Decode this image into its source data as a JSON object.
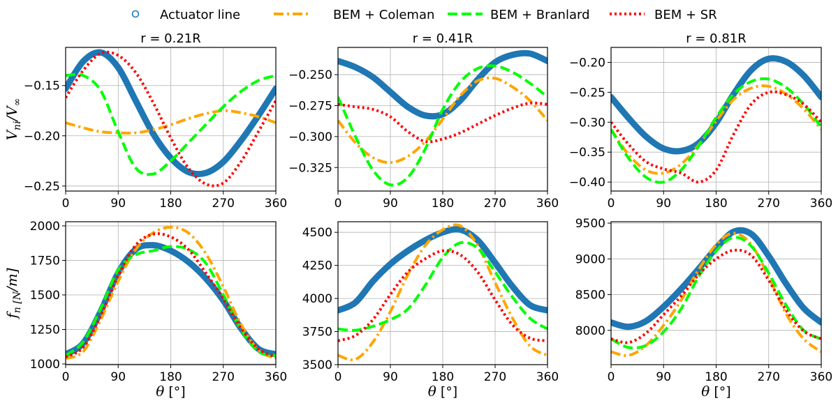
{
  "legend": {
    "entries": [
      {
        "label": "Actuator line",
        "color": "#1f77b4",
        "style": "marker-circle"
      },
      {
        "label": "BEM + Coleman",
        "color": "#ffa500",
        "style": "dashdot"
      },
      {
        "label": "BEM + Branlard",
        "color": "#00ff00",
        "style": "dashed"
      },
      {
        "label": "BEM + SR",
        "color": "#ff0000",
        "style": "dotted"
      }
    ]
  },
  "chart_data": [
    {
      "type": "line",
      "title": "r = 0.21R",
      "xlabel": "",
      "ylabel": "V_ni/V_∞",
      "xlim": [
        0,
        360
      ],
      "ylim": [
        -0.255,
        -0.112
      ],
      "xticks": [
        0,
        90,
        180,
        270,
        360
      ],
      "xtick_labels": [
        "0",
        "90",
        "180",
        "270",
        "360"
      ],
      "yticks": [
        -0.25,
        -0.2,
        -0.15
      ],
      "ytick_labels": [
        "−0.25",
        "−0.20",
        "−0.15"
      ],
      "x": [
        0,
        30,
        60,
        90,
        120,
        150,
        180,
        210,
        240,
        270,
        300,
        330,
        360
      ],
      "series": [
        {
          "name": "Actuator line",
          "values": [
            -0.153,
            -0.126,
            -0.117,
            -0.132,
            -0.165,
            -0.198,
            -0.222,
            -0.236,
            -0.237,
            -0.226,
            -0.205,
            -0.18,
            -0.153
          ]
        },
        {
          "name": "BEM + Coleman",
          "values": [
            -0.187,
            -0.192,
            -0.196,
            -0.197,
            -0.197,
            -0.194,
            -0.189,
            -0.183,
            -0.178,
            -0.175,
            -0.177,
            -0.181,
            -0.187
          ]
        },
        {
          "name": "BEM + Branlard",
          "values": [
            -0.14,
            -0.14,
            -0.155,
            -0.196,
            -0.232,
            -0.238,
            -0.225,
            -0.207,
            -0.189,
            -0.171,
            -0.156,
            -0.145,
            -0.14
          ]
        },
        {
          "name": "BEM + SR",
          "values": [
            -0.162,
            -0.135,
            -0.118,
            -0.12,
            -0.137,
            -0.167,
            -0.202,
            -0.232,
            -0.248,
            -0.247,
            -0.226,
            -0.196,
            -0.165
          ]
        }
      ]
    },
    {
      "type": "line",
      "title": "r = 0.41R",
      "xlabel": "",
      "ylabel": "",
      "xlim": [
        0,
        360
      ],
      "ylim": [
        -0.344,
        -0.228
      ],
      "xticks": [
        0,
        90,
        180,
        270,
        360
      ],
      "xtick_labels": [
        "0",
        "90",
        "180",
        "270",
        "360"
      ],
      "yticks": [
        -0.325,
        -0.3,
        -0.275,
        -0.25
      ],
      "ytick_labels": [
        "−0.325",
        "−0.300",
        "−0.275",
        "−0.250"
      ],
      "x": [
        0,
        30,
        60,
        90,
        120,
        150,
        180,
        210,
        240,
        270,
        300,
        330,
        360
      ],
      "series": [
        {
          "name": "Actuator line",
          "values": [
            -0.239,
            -0.244,
            -0.252,
            -0.264,
            -0.276,
            -0.283,
            -0.282,
            -0.271,
            -0.254,
            -0.24,
            -0.234,
            -0.233,
            -0.239
          ]
        },
        {
          "name": "BEM + Coleman",
          "values": [
            -0.287,
            -0.305,
            -0.317,
            -0.321,
            -0.316,
            -0.304,
            -0.286,
            -0.267,
            -0.255,
            -0.253,
            -0.26,
            -0.271,
            -0.287
          ]
        },
        {
          "name": "BEM + Branlard",
          "values": [
            -0.268,
            -0.3,
            -0.327,
            -0.339,
            -0.333,
            -0.31,
            -0.278,
            -0.256,
            -0.245,
            -0.243,
            -0.248,
            -0.257,
            -0.268
          ]
        },
        {
          "name": "BEM + SR",
          "values": [
            -0.274,
            -0.276,
            -0.278,
            -0.284,
            -0.296,
            -0.304,
            -0.302,
            -0.297,
            -0.29,
            -0.283,
            -0.277,
            -0.273,
            -0.274
          ]
        }
      ]
    },
    {
      "type": "line",
      "title": "r = 0.81R",
      "xlabel": "",
      "ylabel": "",
      "xlim": [
        0,
        360
      ],
      "ylim": [
        -0.415,
        -0.175
      ],
      "xticks": [
        0,
        90,
        180,
        270,
        360
      ],
      "xtick_labels": [
        "0",
        "90",
        "180",
        "270",
        "360"
      ],
      "yticks": [
        -0.4,
        -0.35,
        -0.3,
        -0.25,
        -0.2
      ],
      "ytick_labels": [
        "−0.40",
        "−0.35",
        "−0.30",
        "−0.25",
        "−0.20"
      ],
      "x": [
        0,
        30,
        60,
        90,
        120,
        150,
        180,
        210,
        240,
        270,
        300,
        330,
        360
      ],
      "series": [
        {
          "name": "Actuator line",
          "values": [
            -0.258,
            -0.293,
            -0.324,
            -0.344,
            -0.348,
            -0.335,
            -0.301,
            -0.253,
            -0.213,
            -0.194,
            -0.199,
            -0.222,
            -0.258
          ]
        },
        {
          "name": "BEM + Coleman",
          "values": [
            -0.312,
            -0.354,
            -0.38,
            -0.385,
            -0.37,
            -0.338,
            -0.298,
            -0.262,
            -0.243,
            -0.24,
            -0.253,
            -0.278,
            -0.312
          ]
        },
        {
          "name": "BEM + Branlard",
          "values": [
            -0.312,
            -0.36,
            -0.392,
            -0.4,
            -0.38,
            -0.34,
            -0.292,
            -0.253,
            -0.232,
            -0.228,
            -0.242,
            -0.27,
            -0.308
          ]
        },
        {
          "name": "BEM + SR",
          "values": [
            -0.3,
            -0.337,
            -0.366,
            -0.378,
            -0.385,
            -0.4,
            -0.38,
            -0.32,
            -0.27,
            -0.25,
            -0.254,
            -0.27,
            -0.3
          ]
        }
      ]
    },
    {
      "type": "line",
      "title": "",
      "xlabel": "θ [°]",
      "ylabel": "f_n [N/m]",
      "xlim": [
        0,
        360
      ],
      "ylim": [
        995,
        2030
      ],
      "xticks": [
        0,
        90,
        180,
        270,
        360
      ],
      "xtick_labels": [
        "0",
        "90",
        "180",
        "270",
        "360"
      ],
      "yticks": [
        1000,
        1250,
        1500,
        1750,
        2000
      ],
      "ytick_labels": [
        "1000",
        "1250",
        "1500",
        "1750",
        "2000"
      ],
      "x": [
        0,
        30,
        60,
        90,
        120,
        150,
        180,
        210,
        240,
        270,
        300,
        330,
        360
      ],
      "series": [
        {
          "name": "Actuator line",
          "values": [
            1070,
            1150,
            1380,
            1660,
            1830,
            1860,
            1820,
            1740,
            1620,
            1460,
            1260,
            1110,
            1070
          ]
        },
        {
          "name": "BEM + Coleman",
          "values": [
            1040,
            1090,
            1320,
            1600,
            1830,
            1950,
            1990,
            1950,
            1800,
            1560,
            1290,
            1100,
            1040
          ]
        },
        {
          "name": "BEM + Branlard",
          "values": [
            1060,
            1160,
            1400,
            1680,
            1790,
            1820,
            1850,
            1830,
            1730,
            1500,
            1250,
            1090,
            1060
          ]
        },
        {
          "name": "BEM + SR",
          "values": [
            1050,
            1120,
            1350,
            1640,
            1860,
            1940,
            1920,
            1830,
            1660,
            1470,
            1260,
            1110,
            1050
          ]
        }
      ]
    },
    {
      "type": "line",
      "title": "",
      "xlabel": "θ [°]",
      "ylabel": "",
      "xlim": [
        0,
        360
      ],
      "ylim": [
        3500,
        4580
      ],
      "xticks": [
        0,
        90,
        180,
        270,
        360
      ],
      "xtick_labels": [
        "0",
        "90",
        "180",
        "270",
        "360"
      ],
      "yticks": [
        3500,
        3750,
        4000,
        4250,
        4500
      ],
      "ytick_labels": [
        "3500",
        "3750",
        "4000",
        "4250",
        "4500"
      ],
      "x": [
        0,
        30,
        60,
        90,
        120,
        150,
        180,
        210,
        240,
        270,
        300,
        330,
        360
      ],
      "series": [
        {
          "name": "Actuator line",
          "values": [
            3910,
            3970,
            4130,
            4260,
            4360,
            4440,
            4500,
            4520,
            4440,
            4270,
            4090,
            3950,
            3910
          ]
        },
        {
          "name": "BEM + Coleman",
          "values": [
            3570,
            3540,
            3670,
            3900,
            4180,
            4400,
            4520,
            4550,
            4400,
            4120,
            3850,
            3640,
            3570
          ]
        },
        {
          "name": "BEM + Branlard",
          "values": [
            3770,
            3760,
            3790,
            3840,
            3920,
            4100,
            4310,
            4420,
            4380,
            4200,
            4010,
            3850,
            3770
          ]
        },
        {
          "name": "BEM + SR",
          "values": [
            3680,
            3720,
            3840,
            4030,
            4200,
            4300,
            4360,
            4330,
            4200,
            3990,
            3800,
            3700,
            3680
          ]
        }
      ]
    },
    {
      "type": "line",
      "title": "",
      "xlabel": "θ [°]",
      "ylabel": "",
      "xlim": [
        0,
        360
      ],
      "ylim": [
        7520,
        9520
      ],
      "xticks": [
        0,
        90,
        180,
        270,
        360
      ],
      "xtick_labels": [
        "0",
        "90",
        "180",
        "270",
        "360"
      ],
      "yticks": [
        8000,
        8500,
        9000,
        9500
      ],
      "ytick_labels": [
        "8000",
        "8500",
        "9000",
        "9500"
      ],
      "x": [
        0,
        30,
        60,
        90,
        120,
        150,
        180,
        210,
        240,
        270,
        300,
        330,
        360
      ],
      "series": [
        {
          "name": "Actuator line",
          "values": [
            8110,
            8050,
            8130,
            8330,
            8580,
            8860,
            9150,
            9380,
            9350,
            9040,
            8650,
            8310,
            8110
          ]
        },
        {
          "name": "BEM + Coleman",
          "values": [
            7700,
            7650,
            7790,
            8070,
            8420,
            8850,
            9200,
            9360,
            9200,
            8750,
            8230,
            7880,
            7700
          ]
        },
        {
          "name": "BEM + Branlard",
          "values": [
            7880,
            7760,
            7790,
            7980,
            8300,
            8750,
            9110,
            9300,
            9180,
            8800,
            8350,
            8000,
            7880
          ]
        },
        {
          "name": "BEM + SR",
          "values": [
            7880,
            7830,
            7960,
            8220,
            8480,
            8780,
            9000,
            9120,
            9050,
            8700,
            8280,
            7990,
            7880
          ]
        }
      ]
    }
  ]
}
